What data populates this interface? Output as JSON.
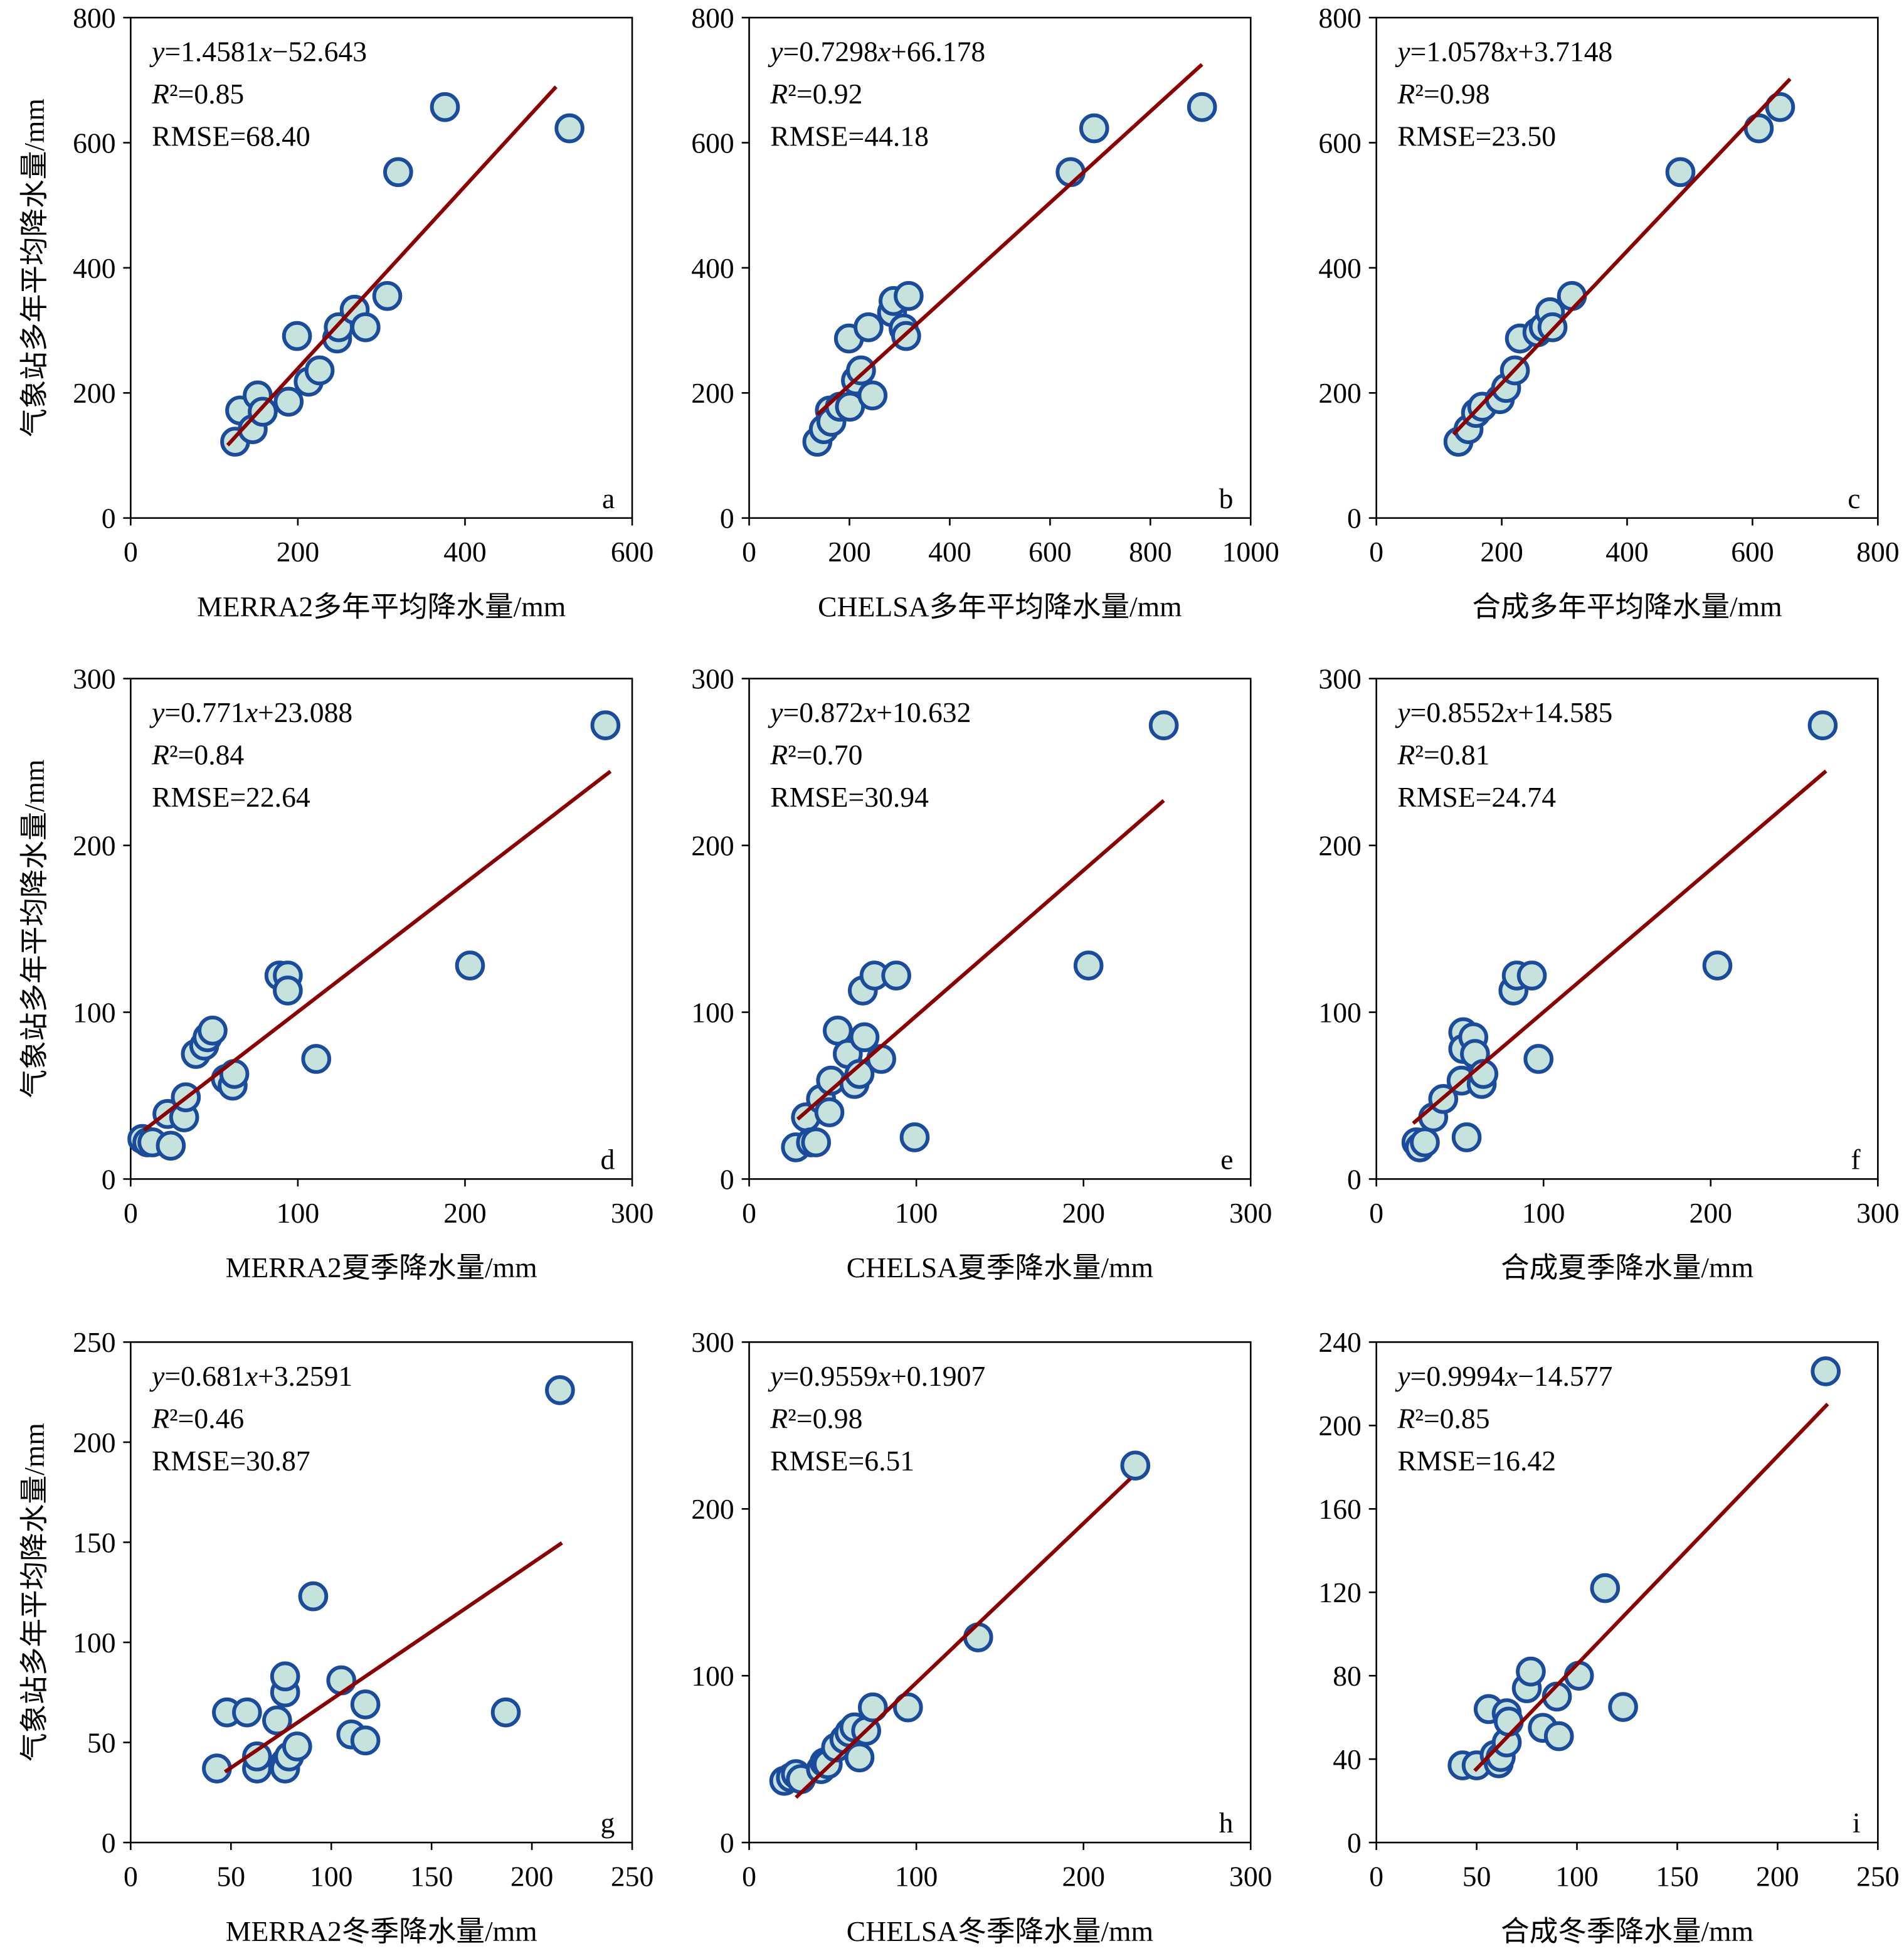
{
  "chart_data": [
    {
      "type": "scatter",
      "panel": "a",
      "xlabel": "MERRA2多年平均降水量/mm",
      "ylabel": "气象站多年平均降水量/mm",
      "equation": "y=1.4581x−52.643",
      "r2": "R²=0.85",
      "rmse": "RMSE=68.40",
      "stats_color": "#000000",
      "x": [
        125,
        131,
        146,
        152,
        158,
        189,
        199,
        213,
        226,
        247,
        249,
        268,
        281,
        307,
        320,
        376,
        525
      ],
      "y": [
        122,
        172,
        142,
        196,
        170,
        186,
        291,
        218,
        236,
        287,
        305,
        333,
        305,
        355,
        553,
        657,
        623
      ],
      "xlim": [
        0,
        600
      ],
      "ylim": [
        0,
        800
      ],
      "xticks": [
        0,
        200,
        400,
        600
      ],
      "yticks": [
        0,
        200,
        400,
        600,
        800
      ],
      "fit": {
        "x": [
          116,
          509
        ],
        "y": [
          116.5,
          689.5
        ]
      },
      "color": "#c6e2dd",
      "edge_color": "#1a4c9b",
      "line_color": "#8b0000"
    },
    {
      "type": "scatter",
      "panel": "b",
      "xlabel": "CHELSA多年平均降水量/mm",
      "equation": "y=0.7298x+66.178",
      "r2": "R²=0.92",
      "rmse": "RMSE=44.18",
      "stats_color": "#000000",
      "x": [
        136,
        149,
        161,
        164,
        181,
        201,
        199,
        213,
        223,
        238,
        246,
        285,
        288,
        308,
        313,
        318,
        641,
        688,
        903
      ],
      "y": [
        122,
        142,
        172,
        154,
        178,
        178,
        287,
        220,
        236,
        305,
        196,
        329,
        347,
        303,
        291,
        355,
        553,
        623,
        657
      ],
      "xlim": [
        0,
        1000
      ],
      "ylim": [
        0,
        800
      ],
      "xticks": [
        0,
        200,
        400,
        600,
        800,
        1000
      ],
      "yticks": [
        0,
        200,
        400,
        600,
        800
      ],
      "fit": {
        "x": [
          136,
          903
        ],
        "y": [
          165.4,
          725.2
        ]
      },
      "color": "#c6e2dd",
      "edge_color": "#1a4c9b",
      "line_color": "#8b0000"
    },
    {
      "type": "scatter",
      "panel": "c",
      "xlabel": "合成多年平均降水量/mm",
      "equation": "y=1.0578x+3.7148",
      "r2": "R²=0.98",
      "rmse": "RMSE=23.50",
      "stats_color": "#e8141b",
      "x": [
        131,
        147,
        159,
        169,
        197,
        207,
        221,
        229,
        257,
        267,
        277,
        281,
        312,
        485,
        610,
        644
      ],
      "y": [
        122,
        142,
        168,
        178,
        190,
        208,
        236,
        287,
        297,
        305,
        329,
        305,
        355,
        553,
        623,
        657
      ],
      "xlim": [
        0,
        800
      ],
      "ylim": [
        0,
        800
      ],
      "xticks": [
        0,
        200,
        400,
        600,
        800
      ],
      "yticks": [
        0,
        200,
        400,
        600,
        800
      ],
      "fit": {
        "x": [
          123,
          660
        ],
        "y": [
          133.8,
          701.9
        ]
      },
      "color": "#c6e2dd",
      "edge_color": "#1a4c9b",
      "line_color": "#8b0000"
    },
    {
      "type": "scatter",
      "panel": "d",
      "xlabel": "MERRA2夏季降水量/mm",
      "ylabel": "气象站多年平均降水量/mm",
      "equation": "y=0.771x+23.088",
      "r2": "R²=0.84",
      "rmse": "RMSE=22.64",
      "stats_color": "#e8141b",
      "x": [
        7,
        10,
        13,
        24,
        22,
        32,
        33,
        57,
        61,
        62,
        39,
        44,
        46,
        49,
        89,
        94,
        94,
        111,
        203,
        284
      ],
      "y": [
        24,
        22,
        22,
        20,
        39,
        37,
        49,
        60,
        56,
        63,
        75,
        80,
        85,
        89,
        122,
        122,
        113,
        72,
        128,
        272
      ],
      "xlim": [
        0,
        300
      ],
      "ylim": [
        0,
        300
      ],
      "xticks": [
        0,
        100,
        200,
        300
      ],
      "yticks": [
        0,
        100,
        200,
        300
      ],
      "fit": {
        "x": [
          8,
          287
        ],
        "y": [
          29.3,
          244.4
        ]
      },
      "color": "#c6e2dd",
      "edge_color": "#1a4c9b",
      "line_color": "#8b0000"
    },
    {
      "type": "scatter",
      "panel": "e",
      "xlabel": "CHELSA夏季降水量/mm",
      "equation": "y=0.872x+10.632",
      "r2": "R²=0.70",
      "rmse": "RMSE=30.94",
      "stats_color": "#000000",
      "x": [
        28,
        34,
        37,
        40,
        43,
        48,
        49,
        53,
        59,
        63,
        66,
        69,
        68,
        75,
        79,
        88,
        99,
        203,
        248
      ],
      "y": [
        19,
        37,
        22,
        22,
        48,
        40,
        59,
        89,
        75,
        57,
        63,
        85,
        113,
        122,
        72,
        122,
        25,
        128,
        272
      ],
      "xlim": [
        0,
        300
      ],
      "ylim": [
        0,
        300
      ],
      "xticks": [
        0,
        100,
        200,
        300
      ],
      "yticks": [
        0,
        100,
        200,
        300
      ],
      "fit": {
        "x": [
          29,
          248
        ],
        "y": [
          35.9,
          226.9
        ]
      },
      "color": "#c6e2dd",
      "edge_color": "#1a4c9b",
      "line_color": "#8b0000"
    },
    {
      "type": "scatter",
      "panel": "f",
      "xlabel": "合成夏季降水量/mm",
      "equation": "y=0.8552x+14.585",
      "r2": "R²=0.81",
      "rmse": "RMSE=24.74",
      "stats_color": "#000000",
      "x": [
        24,
        26,
        29,
        34,
        40,
        51,
        54,
        52,
        52,
        58,
        59,
        63,
        64,
        82,
        84,
        93,
        97,
        204,
        267
      ],
      "y": [
        22,
        19,
        22,
        37,
        48,
        59,
        25,
        88,
        78,
        85,
        75,
        57,
        63,
        113,
        122,
        122,
        72,
        128,
        272
      ],
      "xlim": [
        0,
        300
      ],
      "ylim": [
        0,
        300
      ],
      "xticks": [
        0,
        100,
        200,
        300
      ],
      "yticks": [
        0,
        100,
        200,
        300
      ],
      "fit": {
        "x": [
          22,
          269
        ],
        "y": [
          33.4,
          244.6
        ]
      },
      "color": "#c6e2dd",
      "edge_color": "#1a4c9b",
      "line_color": "#8b0000"
    },
    {
      "type": "scatter",
      "panel": "g",
      "xlabel": "MERRA2冬季降水量/mm",
      "ylabel": "气象站多年平均降水量/mm",
      "equation": "y=0.681x+3.2591",
      "r2": "R²=0.46",
      "rmse": "RMSE=30.87",
      "stats_color": "#000000",
      "x": [
        43,
        48,
        58,
        63,
        63,
        73,
        77,
        77,
        77,
        77,
        79,
        83,
        91,
        105,
        110,
        117,
        117,
        187,
        214
      ],
      "y": [
        37,
        65,
        65,
        37,
        43,
        61,
        40,
        37,
        75,
        83,
        43,
        48,
        123,
        81,
        54,
        69,
        51,
        65,
        226
      ],
      "xlim": [
        0,
        250
      ],
      "ylim": [
        0,
        250
      ],
      "xticks": [
        0,
        50,
        100,
        150,
        200,
        250
      ],
      "yticks": [
        0,
        50,
        100,
        150,
        200,
        250
      ],
      "fit": {
        "x": [
          47,
          215
        ],
        "y": [
          35.3,
          149.7
        ]
      },
      "color": "#c6e2dd",
      "edge_color": "#1a4c9b",
      "line_color": "#8b0000"
    },
    {
      "type": "scatter",
      "panel": "h",
      "xlabel": "CHELSA冬季降水量/mm",
      "equation": "y=0.9559x+0.1907",
      "r2": "R²=0.98",
      "rmse": "RMSE=6.51",
      "stats_color": "#e8141b",
      "x": [
        21,
        25,
        28,
        31,
        43,
        45,
        47,
        52,
        57,
        60,
        63,
        66,
        70,
        74,
        95,
        137,
        231
      ],
      "y": [
        37,
        39,
        41,
        38,
        44,
        48,
        47,
        57,
        62,
        66,
        69,
        51,
        67,
        81,
        81,
        123,
        226
      ],
      "xlim": [
        0,
        300
      ],
      "ylim": [
        0,
        300
      ],
      "xticks": [
        0,
        100,
        200,
        300
      ],
      "yticks": [
        0,
        100,
        200,
        300
      ],
      "fit": {
        "x": [
          28,
          228
        ],
        "y": [
          27.0,
          218.1
        ]
      },
      "color": "#c6e2dd",
      "edge_color": "#1a4c9b",
      "line_color": "#8b0000"
    },
    {
      "type": "scatter",
      "panel": "i",
      "xlabel": "合成冬季降水量/mm",
      "equation": "y=0.9994x−14.577",
      "r2": "R²=0.85",
      "rmse": "RMSE=16.42",
      "stats_color": "#000000",
      "x": [
        43,
        50,
        56,
        59,
        61,
        62,
        65,
        65,
        66,
        75,
        77,
        83,
        91,
        90,
        101,
        114,
        123,
        224
      ],
      "y": [
        37,
        37,
        64,
        42,
        38,
        41,
        62,
        48,
        58,
        74,
        82,
        55,
        51,
        70,
        80,
        122,
        65,
        226
      ],
      "xlim": [
        0,
        250
      ],
      "ylim": [
        0,
        240
      ],
      "xticks": [
        0,
        50,
        100,
        150,
        200,
        250
      ],
      "yticks": [
        0,
        40,
        80,
        120,
        160,
        200,
        240
      ],
      "fit": {
        "x": [
          49,
          225
        ],
        "y": [
          34.4,
          210.3
        ]
      },
      "color": "#c6e2dd",
      "edge_color": "#1a4c9b",
      "line_color": "#8b0000"
    }
  ]
}
